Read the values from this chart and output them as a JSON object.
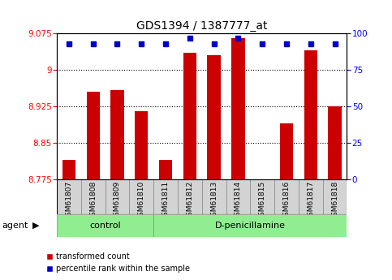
{
  "title": "GDS1394 / 1387777_at",
  "samples": [
    "GSM61807",
    "GSM61808",
    "GSM61809",
    "GSM61810",
    "GSM61811",
    "GSM61812",
    "GSM61813",
    "GSM61814",
    "GSM61815",
    "GSM61816",
    "GSM61817",
    "GSM61818"
  ],
  "red_values": [
    8.815,
    8.955,
    8.958,
    8.915,
    8.815,
    9.035,
    9.03,
    9.065,
    8.775,
    8.89,
    9.04,
    8.925
  ],
  "blue_values": [
    93,
    93,
    93,
    93,
    93,
    97,
    93,
    97,
    93,
    93,
    93,
    93
  ],
  "ylim_left": [
    8.775,
    9.075
  ],
  "ylim_right": [
    0,
    100
  ],
  "yticks_left": [
    8.775,
    8.85,
    8.925,
    9.0,
    9.075
  ],
  "yticks_right": [
    0,
    25,
    50,
    75,
    100
  ],
  "gridlines": [
    9.0,
    8.925,
    8.85
  ],
  "bar_color": "#cc0000",
  "dot_color": "#0000cc",
  "bar_width": 0.55,
  "ctrl_count": 4,
  "dpen_count": 8,
  "agent_label": "agent",
  "control_label": "control",
  "dpen_label": "D-penicillamine",
  "legend_red": "transformed count",
  "legend_blue": "percentile rank within the sample",
  "title_fontsize": 10,
  "tick_fontsize": 7.5,
  "label_fontsize": 6.5
}
